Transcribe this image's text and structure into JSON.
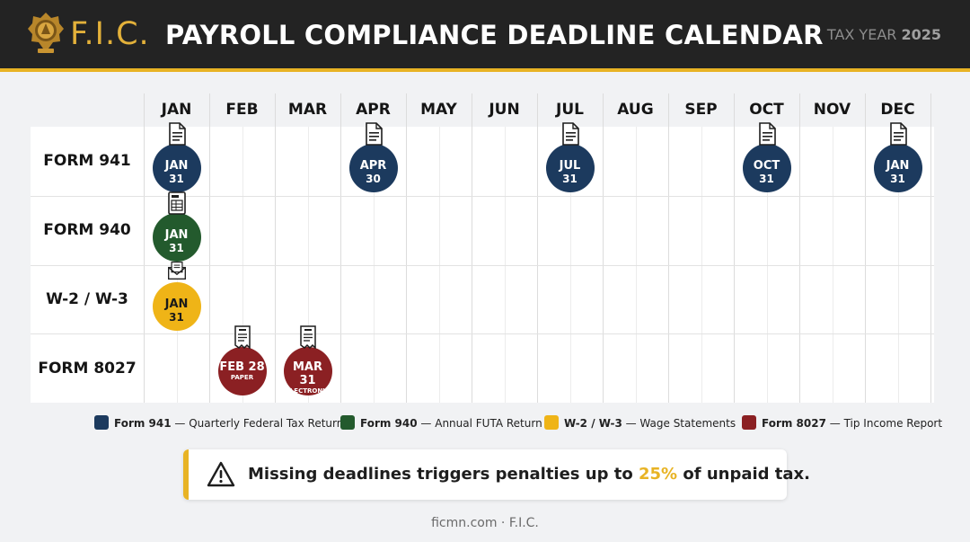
{
  "header": {
    "logo_text": "F.I.C.",
    "title": "PAYROLL COMPLIANCE DEADLINE CALENDAR",
    "tax_year_label": "TAX YEAR",
    "tax_year_value": "2025"
  },
  "calendar": {
    "months": [
      "JAN",
      "FEB",
      "MAR",
      "APR",
      "MAY",
      "JUN",
      "JUL",
      "AUG",
      "SEP",
      "OCT",
      "NOV",
      "DEC"
    ],
    "rows": [
      {
        "label": "FORM 941",
        "icon": "document-icon",
        "color": "#1c3a5e",
        "deadlines": [
          {
            "month_index": 0,
            "line1": "JAN",
            "line2": "31"
          },
          {
            "month_index": 3,
            "line1": "APR",
            "line2": "30"
          },
          {
            "month_index": 6,
            "line1": "JUL",
            "line2": "31"
          },
          {
            "month_index": 9,
            "line1": "OCT",
            "line2": "31"
          },
          {
            "month_index": 11,
            "line1": "JAN",
            "line2": "31"
          }
        ]
      },
      {
        "label": "FORM 940",
        "icon": "tax-form-icon",
        "color": "#235a2d",
        "deadlines": [
          {
            "month_index": 0,
            "line1": "JAN",
            "line2": "31"
          }
        ]
      },
      {
        "label": "W-2 / W-3",
        "icon": "envelope-icon",
        "color": "#efb417",
        "deadlines": [
          {
            "month_index": 0,
            "line1": "JAN",
            "line2": "31"
          }
        ]
      },
      {
        "label": "FORM 8027",
        "icon": "receipt-icon",
        "color": "#8b2023",
        "deadlines": [
          {
            "month_index": 1,
            "line1": "FEB 28",
            "line2": "PAPER"
          },
          {
            "month_index": 2,
            "line1": "MAR 31",
            "line2": "ELECTRONIC"
          }
        ]
      }
    ]
  },
  "legend": [
    {
      "form": "Form 941",
      "desc": "— Quarterly Federal Tax Return",
      "color": "#1c3a5e"
    },
    {
      "form": "Form 940",
      "desc": "— Annual FUTA Return",
      "color": "#235a2d"
    },
    {
      "form": "W-2 / W-3",
      "desc": "— Wage Statements",
      "color": "#efb417"
    },
    {
      "form": "Form 8027",
      "desc": "— Tip Income Report",
      "color": "#8b2023"
    }
  ],
  "warning": {
    "text_before": "Missing deadlines triggers penalties up to ",
    "highlight": "25%",
    "text_after": " of unpaid tax.",
    "icon": "warning-triangle-icon"
  },
  "footer": {
    "text": "ficmn.com · F.I.C."
  }
}
